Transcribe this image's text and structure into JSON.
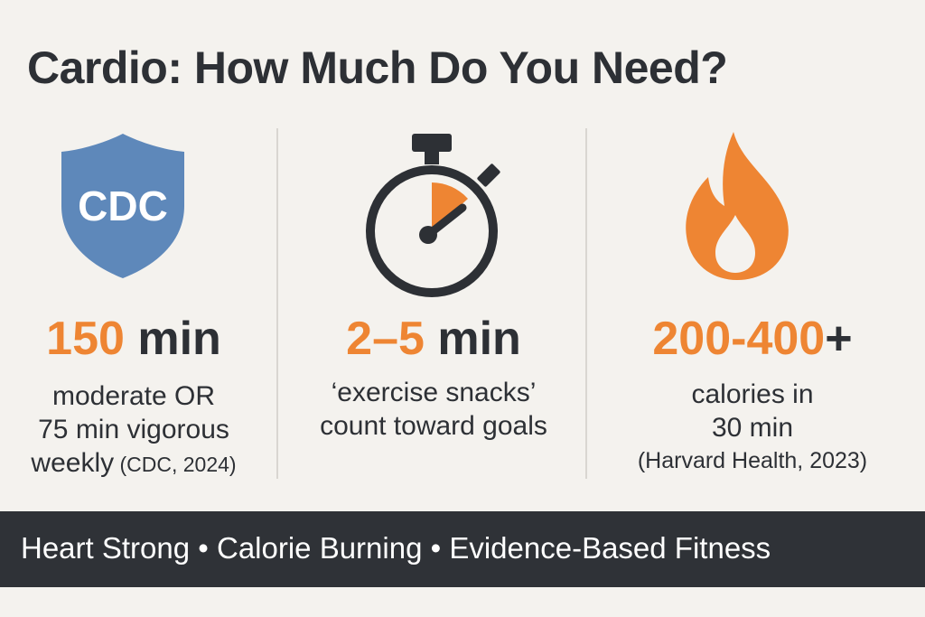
{
  "title": "Cardio: How Much Do You Need?",
  "colors": {
    "accent": "#ee8533",
    "dark": "#2d3035",
    "shield": "#5e88ba",
    "banner": "#2f3237"
  },
  "columns": [
    {
      "icon": "shield-icon",
      "icon_text": "CDC",
      "stat_accent": "150",
      "stat_dark": " min",
      "lines": [
        "moderate OR",
        "75 min vigorous"
      ],
      "last_line": "weekly",
      "last_line_small": " (CDC, 2024)"
    },
    {
      "icon": "stopwatch-icon",
      "stat_accent": "2–5",
      "stat_dark": " min",
      "lines": [
        "‘exercise snacks’",
        "count toward goals"
      ]
    },
    {
      "icon": "flame-icon",
      "stat_accent": "200-400",
      "stat_dark": "+",
      "lines": [
        "calories in",
        "30 min"
      ],
      "source": "(Harvard Health, 2023)"
    }
  ],
  "banner": "Heart Strong • Calorie Burning • Evidence-Based Fitness"
}
